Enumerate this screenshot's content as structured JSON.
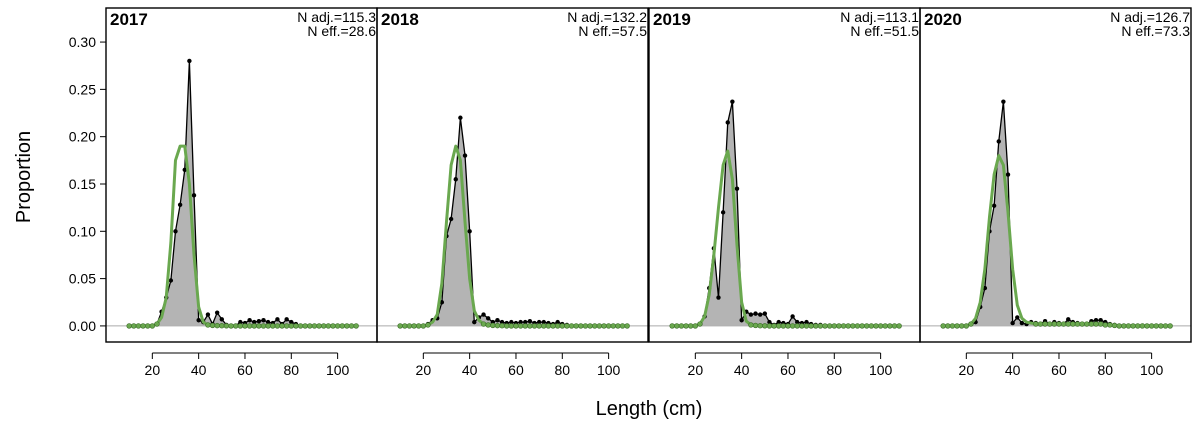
{
  "chart_data": {
    "type": "area",
    "xlabel": "Length (cm)",
    "ylabel": "Proportion",
    "xlim": [
      0,
      117
    ],
    "ylim": [
      -0.017,
      0.336
    ],
    "x_ticks": [
      20,
      40,
      60,
      80,
      100
    ],
    "y_ticks": [
      0.0,
      0.05,
      0.1,
      0.15,
      0.2,
      0.25,
      0.3
    ],
    "y_tick_labels": [
      "0.00",
      "0.05",
      "0.10",
      "0.15",
      "0.20",
      "0.25",
      "0.30"
    ],
    "colors": {
      "observed_fill": "#b4b4b4",
      "observed_line": "#000000",
      "expected_line": "#6aa84f",
      "expected_points": "#6aa84f",
      "zero_line": "#aaaaaa"
    },
    "x": [
      10,
      12,
      14,
      16,
      18,
      20,
      22,
      24,
      26,
      28,
      30,
      32,
      34,
      36,
      38,
      40,
      42,
      44,
      46,
      48,
      50,
      52,
      54,
      56,
      58,
      60,
      62,
      64,
      66,
      68,
      70,
      72,
      74,
      76,
      78,
      80,
      82,
      84,
      86,
      88,
      90,
      92,
      94,
      96,
      98,
      100,
      102,
      104,
      106,
      108
    ],
    "panels": [
      {
        "year": "2017",
        "n_adj": "N adj.=115.3",
        "n_eff": "N eff.=28.6",
        "observed": [
          0,
          0,
          0,
          0,
          0,
          0,
          0.002,
          0.015,
          0.03,
          0.048,
          0.1,
          0.128,
          0.165,
          0.28,
          0.138,
          0.006,
          0.004,
          0.012,
          0.002,
          0.014,
          0.007,
          0.001,
          0,
          0,
          0.004,
          0.003,
          0.006,
          0.004,
          0.005,
          0.006,
          0.004,
          0.003,
          0.007,
          0.002,
          0.007,
          0.004,
          0.002,
          0,
          0,
          0,
          0,
          0,
          0,
          0,
          0,
          0,
          0,
          0,
          0,
          0
        ],
        "expected": [
          0,
          0,
          0,
          0,
          0,
          0,
          0.002,
          0.009,
          0.03,
          0.088,
          0.175,
          0.19,
          0.19,
          0.15,
          0.075,
          0.02,
          0.004,
          0.001,
          0.0005,
          0.0003,
          0.0002,
          0.0001,
          0,
          0,
          0,
          0,
          0,
          0,
          0,
          0,
          0,
          0,
          0,
          0,
          0,
          0,
          0,
          0,
          0,
          0,
          0,
          0,
          0,
          0,
          0,
          0,
          0,
          0,
          0,
          0
        ]
      },
      {
        "year": "2018",
        "n_adj": "N adj.=132.2",
        "n_eff": "N eff.=57.5",
        "observed": [
          0,
          0,
          0,
          0,
          0,
          0,
          0.002,
          0.006,
          0.008,
          0.025,
          0.095,
          0.113,
          0.155,
          0.22,
          0.18,
          0.1,
          0.004,
          0.009,
          0.012,
          0.008,
          0.004,
          0.006,
          0.004,
          0.003,
          0.004,
          0.003,
          0.004,
          0.004,
          0.005,
          0.003,
          0.004,
          0.004,
          0.003,
          0.002,
          0.004,
          0.002,
          0.001,
          0,
          0,
          0,
          0,
          0,
          0,
          0,
          0,
          0,
          0,
          0,
          0,
          0
        ],
        "expected": [
          0,
          0,
          0,
          0,
          0,
          0,
          0.001,
          0.004,
          0.012,
          0.045,
          0.11,
          0.17,
          0.19,
          0.175,
          0.11,
          0.05,
          0.016,
          0.006,
          0.002,
          0.001,
          0.0005,
          0.0003,
          0.0002,
          0,
          0,
          0,
          0,
          0,
          0,
          0,
          0,
          0,
          0,
          0,
          0,
          0,
          0,
          0,
          0,
          0,
          0,
          0,
          0,
          0,
          0,
          0,
          0,
          0,
          0,
          0
        ]
      },
      {
        "year": "2019",
        "n_adj": "N adj.=113.1",
        "n_eff": "N eff.=51.5",
        "observed": [
          0,
          0,
          0,
          0,
          0,
          0,
          0.002,
          0.01,
          0.04,
          0.082,
          0.03,
          0.12,
          0.215,
          0.237,
          0.145,
          0.006,
          0.015,
          0.012,
          0.013,
          0.012,
          0.013,
          0.004,
          0.001,
          0.004,
          0.003,
          0.002,
          0.01,
          0.004,
          0.003,
          0.004,
          0.002,
          0.001,
          0.001,
          0,
          0,
          0,
          0,
          0,
          0,
          0,
          0,
          0,
          0,
          0,
          0,
          0,
          0,
          0,
          0,
          0
        ],
        "expected": [
          0,
          0,
          0,
          0,
          0,
          0,
          0.002,
          0.01,
          0.033,
          0.075,
          0.125,
          0.17,
          0.185,
          0.155,
          0.085,
          0.025,
          0.005,
          0.001,
          0.0005,
          0.0002,
          0.0001,
          0,
          0,
          0,
          0,
          0,
          0,
          0,
          0,
          0,
          0,
          0,
          0,
          0,
          0,
          0,
          0,
          0,
          0,
          0,
          0,
          0,
          0,
          0,
          0,
          0,
          0,
          0,
          0,
          0
        ]
      },
      {
        "year": "2020",
        "n_adj": "N adj.=126.7",
        "n_eff": "N eff.=73.3",
        "observed": [
          0,
          0,
          0,
          0,
          0,
          0,
          0.002,
          0.004,
          0.02,
          0.04,
          0.1,
          0.127,
          0.195,
          0.237,
          0.16,
          0.003,
          0.009,
          0.003,
          0.002,
          0.004,
          0.003,
          0.002,
          0.005,
          0.002,
          0.004,
          0.003,
          0.002,
          0.007,
          0.004,
          0.003,
          0.002,
          0.002,
          0.005,
          0.006,
          0.006,
          0.004,
          0.002,
          0.001,
          0,
          0,
          0,
          0,
          0,
          0,
          0,
          0,
          0,
          0,
          0,
          0
        ],
        "expected": [
          0,
          0,
          0,
          0,
          0,
          0,
          0.002,
          0.008,
          0.025,
          0.06,
          0.115,
          0.16,
          0.18,
          0.17,
          0.12,
          0.06,
          0.022,
          0.008,
          0.004,
          0.003,
          0.002,
          0.002,
          0.002,
          0.002,
          0.002,
          0.002,
          0.002,
          0.002,
          0.002,
          0.002,
          0.002,
          0.002,
          0.002,
          0.002,
          0.002,
          0.001,
          0.001,
          0.0005,
          0,
          0,
          0,
          0,
          0,
          0,
          0,
          0,
          0,
          0,
          0,
          0
        ]
      }
    ]
  }
}
